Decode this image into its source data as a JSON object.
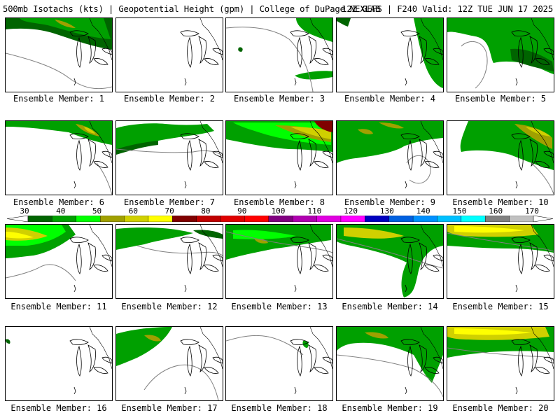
{
  "header": {
    "left": "500mb Isotachs (kts) | Geopotential Height (gpm) | College of DuPage NEXLAB",
    "right": "12Z GEFS | F240 Valid: 12Z TUE JUN 17 2025"
  },
  "colorbar": {
    "labels": [
      "30",
      "40",
      "50",
      "60",
      "70",
      "80",
      "90",
      "100",
      "110",
      "120",
      "130",
      "140",
      "150",
      "160",
      "170"
    ],
    "colors": [
      "#006400",
      "#00a000",
      "#00ff00",
      "#a0a000",
      "#d0d000",
      "#ffff00",
      "#800000",
      "#c00000",
      "#e00000",
      "#ff0000",
      "#800080",
      "#b000b0",
      "#e000e0",
      "#ff00ff",
      "#0000c0",
      "#0060e0",
      "#0090ff",
      "#00c0ff",
      "#00ffff",
      "#808080",
      "#c0c0c0"
    ]
  },
  "panels": [
    {
      "label": "Ensemble Member: 1"
    },
    {
      "label": "Ensemble Member: 2"
    },
    {
      "label": "Ensemble Member: 3"
    },
    {
      "label": "Ensemble Member: 4"
    },
    {
      "label": "Ensemble Member: 5"
    },
    {
      "label": "Ensemble Member: 6"
    },
    {
      "label": "Ensemble Member: 7"
    },
    {
      "label": "Ensemble Member: 8"
    },
    {
      "label": "Ensemble Member: 9"
    },
    {
      "label": "Ensemble Member: 10"
    },
    {
      "label": "Ensemble Member: 11"
    },
    {
      "label": "Ensemble Member: 12"
    },
    {
      "label": "Ensemble Member: 13"
    },
    {
      "label": "Ensemble Member: 14"
    },
    {
      "label": "Ensemble Member: 15"
    },
    {
      "label": "Ensemble Member: 16"
    },
    {
      "label": "Ensemble Member: 17"
    },
    {
      "label": "Ensemble Member: 18"
    },
    {
      "label": "Ensemble Member: 19"
    },
    {
      "label": "Ensemble Member: 20"
    }
  ]
}
